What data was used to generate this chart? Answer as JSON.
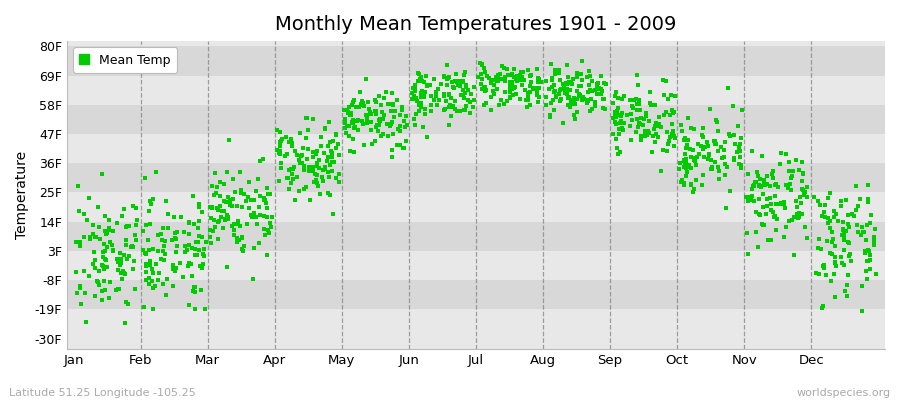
{
  "title": "Monthly Mean Temperatures 1901 - 2009",
  "ylabel": "Temperature",
  "xlabel_bottom": "Latitude 51.25 Longitude -105.25",
  "xlabel_right": "worldspecies.org",
  "legend_label": "Mean Temp",
  "dot_color": "#00cc00",
  "background_color": "#ffffff",
  "plot_bg_light": "#e8e8e8",
  "plot_bg_dark": "#d8d8d8",
  "vline_color": "#888888",
  "yticks": [
    -30,
    -19,
    -8,
    3,
    14,
    25,
    36,
    47,
    58,
    69,
    80
  ],
  "ytick_labels": [
    "-30F",
    "-19F",
    "-8F",
    "3F",
    "14F",
    "25F",
    "36F",
    "47F",
    "58F",
    "69F",
    "80F"
  ],
  "ylim": [
    -34,
    82
  ],
  "months": [
    "Jan",
    "Feb",
    "Mar",
    "Apr",
    "May",
    "Jun",
    "Jul",
    "Aug",
    "Sep",
    "Oct",
    "Nov",
    "Dec"
  ],
  "month_means_F": [
    2,
    4,
    18,
    38,
    52,
    62,
    66,
    63,
    52,
    40,
    22,
    6
  ],
  "month_stds_F": [
    11,
    10,
    9,
    7,
    6,
    5,
    4,
    5,
    6,
    7,
    8,
    10
  ],
  "n_years": 109,
  "seed": 7
}
